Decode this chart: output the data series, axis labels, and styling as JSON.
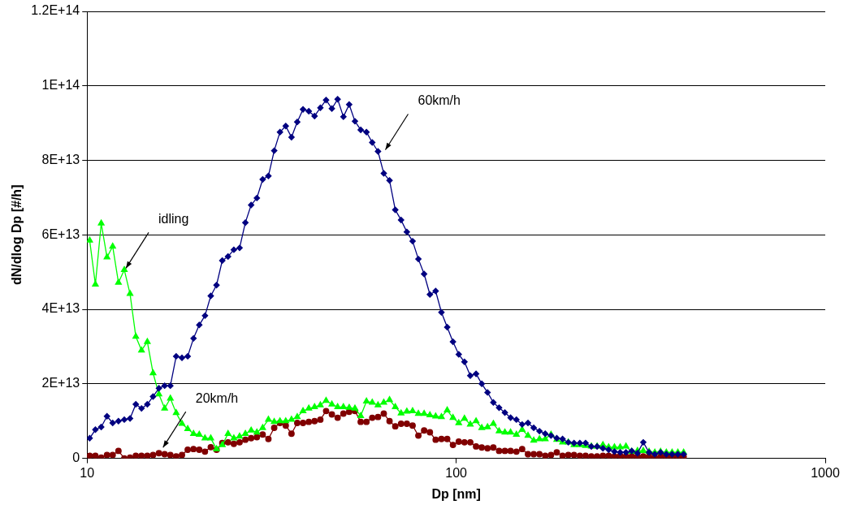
{
  "chart_data": {
    "type": "line",
    "xlabel": "Dp [nm]",
    "ylabel": "dN/dlog Dp [#/h]",
    "log": "x",
    "grid": "y",
    "xlim": [
      10,
      1000
    ],
    "xticks": [
      10,
      100,
      1000
    ],
    "ylim": [
      0,
      120000000000000.0
    ],
    "yticks": [
      0,
      {
        "value": 20000000000000.0,
        "label": "2E+13"
      },
      {
        "value": 40000000000000.0,
        "label": "4E+13"
      },
      {
        "value": 60000000000000.0,
        "label": "6E+13"
      },
      {
        "value": 80000000000000.0,
        "label": "8E+13"
      },
      {
        "value": 100000000000000.0,
        "label": "1E+14"
      },
      {
        "value": 120000000000000.0,
        "label": "1.2E+14"
      }
    ],
    "x": [
      10.16,
      10.53,
      10.92,
      11.32,
      11.73,
      12.16,
      12.61,
      13.07,
      13.55,
      14.04,
      14.56,
      15.09,
      15.65,
      16.22,
      16.81,
      17.43,
      18.07,
      18.73,
      19.42,
      20.13,
      20.86,
      21.63,
      22.42,
      23.24,
      24.09,
      24.98,
      25.89,
      26.84,
      27.82,
      28.84,
      29.9,
      30.99,
      32.13,
      33.31,
      34.53,
      35.79,
      37.1,
      38.46,
      39.87,
      41.33,
      42.85,
      44.41,
      46.04,
      47.73,
      49.48,
      51.29,
      53.17,
      55.12,
      57.13,
      59.23,
      61.4,
      63.65,
      65.98,
      68.39,
      70.9,
      73.5,
      76.19,
      78.98,
      81.87,
      84.87,
      87.98,
      91.21,
      94.55,
      98.01,
      101.6,
      105.3,
      109.2,
      113.2,
      117.3,
      121.6,
      126.1,
      130.7,
      135.5,
      140.4,
      145.6,
      150.9,
      156.5,
      162.2,
      168.1,
      174.3,
      180.7,
      187.3,
      194.2,
      201.3,
      208.6,
      216.3,
      224.2,
      232.4,
      240.9,
      249.8,
      258.9,
      268.4,
      278.2,
      288.4,
      299.0,
      309.9,
      321.3,
      333.1,
      345.3,
      357.9,
      371.0,
      384.6,
      398.7,
      413.3
    ],
    "series": [
      {
        "color": "#000080",
        "marker": "diamond",
        "values": [
          5400000000000.0,
          7700000000000.0,
          8400000000000.0,
          11300000000000.0,
          9500000000000.0,
          10000000000000.0,
          10400000000000.0,
          10700000000000.0,
          14500000000000.0,
          13400000000000.0,
          14500000000000.0,
          16600000000000.0,
          18800000000000.0,
          19500000000000.0,
          19500000000000.0,
          27400000000000.0,
          27000000000000.0,
          27400000000000.0,
          32200000000000.0,
          35800000000000.0,
          38300000000000.0,
          43600000000000.0,
          46500000000000.0,
          53100000000000.0,
          54200000000000.0,
          56000000000000.0,
          56500000000000.0,
          63300000000000.0,
          68000000000000.0,
          69900000000000.0,
          74900000000000.0,
          75800000000000.0,
          82600000000000.0,
          87600000000000.0,
          89200000000000.0,
          86200000000000.0,
          90300000000000.0,
          93700000000000.0,
          93200000000000.0,
          91900000000000.0,
          94100000000000.0,
          96200000000000.0,
          93900000000000.0,
          96400000000000.0,
          91700000000000.0,
          95000000000000.0,
          90500000000000.0,
          88200000000000.0,
          87600000000000.0,
          84800000000000.0,
          82400000000000.0,
          76500000000000.0,
          74600000000000.0,
          66700000000000.0,
          64000000000000.0,
          60800000000000.0,
          58300000000000.0,
          53500000000000.0,
          49500000000000.0,
          44000000000000.0,
          44900000000000.0,
          39200000000000.0,
          35200000000000.0,
          31300000000000.0,
          27900000000000.0,
          25900000000000.0,
          22200000000000.0,
          22700000000000.0,
          20000000000000.0,
          17700000000000.0,
          15000000000000.0,
          13600000000000.0,
          12300000000000.0,
          10900000000000.0,
          10400000000000.0,
          9100000000000.0,
          9500000000000.0,
          8200000000000.0,
          7300000000000.0,
          6600000000000.0,
          6100000000000.0,
          5400000000000.0,
          5200000000000.0,
          4300000000000.0,
          4100000000000.0,
          4100000000000.0,
          4100000000000.0,
          3200000000000.0,
          3200000000000.0,
          2700000000000.0,
          2300000000000.0,
          1800000000000.0,
          1600000000000.0,
          1600000000000.0,
          2000000000000.0,
          1400000000000.0,
          4300000000000.0,
          1600000000000.0,
          1100000000000.0,
          1600000000000.0,
          1100000000000.0,
          1100000000000.0,
          1100000000000.0,
          1100000000000.0
        ]
      },
      {
        "color": "#00ff00",
        "marker": "triangle",
        "values": [
          58500000000000.0,
          46700000000000.0,
          63100000000000.0,
          54000000000000.0,
          56900000000000.0,
          47200000000000.0,
          50600000000000.0,
          44200000000000.0,
          32700000000000.0,
          29000000000000.0,
          31300000000000.0,
          22900000000000.0,
          17200000000000.0,
          13400000000000.0,
          16100000000000.0,
          12200000000000.0,
          9300000000000.0,
          7900000000000.0,
          6600000000000.0,
          6400000000000.0,
          5400000000000.0,
          5400000000000.0,
          2500000000000.0,
          3600000000000.0,
          6600000000000.0,
          5400000000000.0,
          5900000000000.0,
          6600000000000.0,
          7500000000000.0,
          7000000000000.0,
          8200000000000.0,
          10400000000000.0,
          9800000000000.0,
          10000000000000.0,
          10000000000000.0,
          10400000000000.0,
          11100000000000.0,
          12700000000000.0,
          13400000000000.0,
          13800000000000.0,
          14300000000000.0,
          15500000000000.0,
          14500000000000.0,
          13800000000000.0,
          13800000000000.0,
          13600000000000.0,
          13400000000000.0,
          11400000000000.0,
          15300000000000.0,
          15000000000000.0,
          14300000000000.0,
          15000000000000.0,
          15700000000000.0,
          13800000000000.0,
          12100000000000.0,
          12600000000000.0,
          12700000000000.0,
          12000000000000.0,
          12000000000000.0,
          11600000000000.0,
          11300000000000.0,
          11100000000000.0,
          12900000000000.0,
          10900000000000.0,
          9500000000000.0,
          10700000000000.0,
          9100000000000.0,
          10000000000000.0,
          8200000000000.0,
          8400000000000.0,
          9300000000000.0,
          7300000000000.0,
          7000000000000.0,
          7000000000000.0,
          6400000000000.0,
          7700000000000.0,
          6100000000000.0,
          4800000000000.0,
          5200000000000.0,
          5200000000000.0,
          6400000000000.0,
          5000000000000.0,
          4300000000000.0,
          4300000000000.0,
          3600000000000.0,
          3600000000000.0,
          3400000000000.0,
          3200000000000.0,
          3200000000000.0,
          3600000000000.0,
          3000000000000.0,
          3000000000000.0,
          3000000000000.0,
          3200000000000.0,
          1800000000000.0,
          2000000000000.0,
          2000000000000.0,
          1800000000000.0,
          1600000000000.0,
          1800000000000.0,
          1600000000000.0,
          1600000000000.0,
          1600000000000.0,
          1600000000000.0
        ]
      },
      {
        "color": "#800000",
        "marker": "circle",
        "values": [
          700000000000.0,
          700000000000.0,
          200000000000.0,
          900000000000.0,
          900000000000.0,
          2000000000000.0,
          0.0,
          200000000000.0,
          700000000000.0,
          700000000000.0,
          700000000000.0,
          900000000000.0,
          1400000000000.0,
          1100000000000.0,
          900000000000.0,
          500000000000.0,
          900000000000.0,
          2300000000000.0,
          2500000000000.0,
          2300000000000.0,
          1800000000000.0,
          3000000000000.0,
          2300000000000.0,
          4100000000000.0,
          4300000000000.0,
          3900000000000.0,
          4300000000000.0,
          5000000000000.0,
          5400000000000.0,
          5700000000000.0,
          6400000000000.0,
          5200000000000.0,
          8200000000000.0,
          9500000000000.0,
          8800000000000.0,
          6600000000000.0,
          9500000000000.0,
          9500000000000.0,
          9800000000000.0,
          10000000000000.0,
          10400000000000.0,
          12700000000000.0,
          11800000000000.0,
          10900000000000.0,
          12000000000000.0,
          12500000000000.0,
          12700000000000.0,
          9800000000000.0,
          9800000000000.0,
          10900000000000.0,
          11100000000000.0,
          12000000000000.0,
          10000000000000.0,
          8600000000000.0,
          9300000000000.0,
          9300000000000.0,
          8800000000000.0,
          6100000000000.0,
          7500000000000.0,
          7000000000000.0,
          5000000000000.0,
          5200000000000.0,
          5200000000000.0,
          3600000000000.0,
          4500000000000.0,
          4300000000000.0,
          4300000000000.0,
          3200000000000.0,
          2900000000000.0,
          2700000000000.0,
          2900000000000.0,
          2000000000000.0,
          2000000000000.0,
          2000000000000.0,
          1800000000000.0,
          2500000000000.0,
          1100000000000.0,
          1100000000000.0,
          1100000000000.0,
          700000000000.0,
          900000000000.0,
          1600000000000.0,
          700000000000.0,
          900000000000.0,
          900000000000.0,
          700000000000.0,
          700000000000.0,
          500000000000.0,
          500000000000.0,
          700000000000.0,
          700000000000.0,
          500000000000.0,
          700000000000.0,
          500000000000.0,
          500000000000.0,
          500000000000.0,
          500000000000.0,
          500000000000.0,
          200000000000.0,
          500000000000.0,
          500000000000.0,
          500000000000.0,
          500000000000.0,
          500000000000.0
        ]
      }
    ],
    "annotations": [
      {
        "text": "60km/h",
        "x": 63.65,
        "y": 82400000000000.0
      },
      {
        "text": "idling",
        "x": 12.61,
        "y": 50600000000000.0
      },
      {
        "text": "20km/h",
        "x": 15.9,
        "y": 2500000000000.0
      }
    ]
  }
}
